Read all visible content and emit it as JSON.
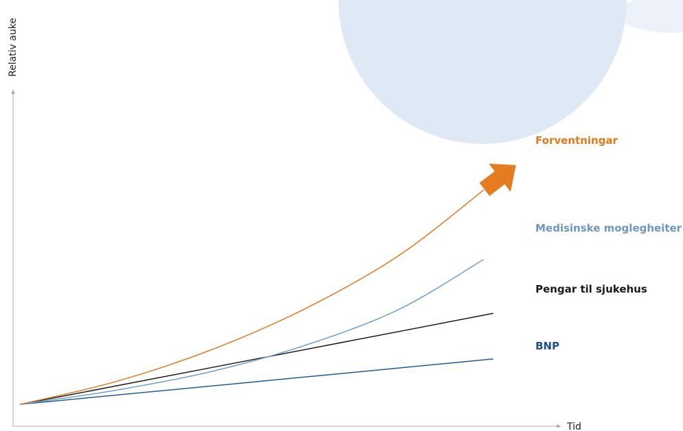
{
  "chart_data": {
    "type": "line",
    "title": "",
    "xlabel": "Tid",
    "ylabel": "Relativ auke",
    "xlim": [
      0,
      1
    ],
    "ylim": [
      0,
      1
    ],
    "grid": false,
    "legend": "direct labels at line ends",
    "series": [
      {
        "name": "Forventningar",
        "color": "#e07a1c",
        "marker_color": "#e57c1f",
        "end_marker": "arrow",
        "points": [
          [
            0,
            0
          ],
          [
            0.2,
            0.071
          ],
          [
            0.4,
            0.17
          ],
          [
            0.6,
            0.3
          ],
          [
            0.8,
            0.469
          ],
          [
            0.98,
            0.676
          ]
        ]
      },
      {
        "name": "Medisinske moglegheiter",
        "color": "#6a9fd3",
        "label_color": "#6e96c2",
        "points": [
          [
            0,
            0
          ],
          [
            0.2,
            0.044
          ],
          [
            0.4,
            0.102
          ],
          [
            0.6,
            0.185
          ],
          [
            0.8,
            0.299
          ],
          [
            0.98,
            0.457
          ]
        ]
      },
      {
        "name": "Pengar til sjukehus",
        "color": "#1a1a1a",
        "points": [
          [
            0,
            0
          ],
          [
            1,
            0.287
          ]
        ]
      },
      {
        "name": "BNP",
        "color": "#1f5a96",
        "label_color": "#1f4e8c",
        "points": [
          [
            0,
            0
          ],
          [
            1,
            0.143
          ]
        ]
      }
    ]
  },
  "decoration": {
    "circle_color": "#dfe9f6",
    "circle_light_color": "#edf2fa"
  }
}
